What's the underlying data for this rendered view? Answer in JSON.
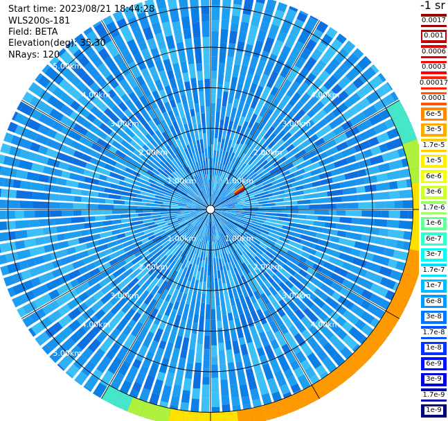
{
  "header": {
    "start_time": "Start time: 2023/08/21 18:44:28",
    "instrument": "WLS200s-181",
    "field": "Field: BETA",
    "elevation": "Elevation(deg): 35.30",
    "nrays": "NRays: 120"
  },
  "colorbar": {
    "title": "-1 sr",
    "labels": [
      "0.0017",
      "0.001",
      "0.0006",
      "0.0003",
      "0.00017",
      "0.0001",
      "6e-5",
      "3e-5",
      "1.7e-5",
      "1e-5",
      "6e-6",
      "3e-6",
      "1.7e-6",
      "1e-6",
      "6e-7",
      "3e-7",
      "1.7e-7",
      "1e-7",
      "6e-8",
      "3e-8",
      "1.7e-8",
      "1e-8",
      "6e-9",
      "3e-9",
      "1.7e-9",
      "1e-9"
    ],
    "colors": [
      "#990000",
      "#bb0000",
      "#dd0000",
      "#ff0000",
      "#ff2200",
      "#ff5500",
      "#ff8800",
      "#ffaa00",
      "#ffcc00",
      "#ffee00",
      "#eeff11",
      "#ccff33",
      "#99ff66",
      "#66ff99",
      "#33ffcc",
      "#00ffee",
      "#00ddff",
      "#00bbff",
      "#0099ff",
      "#0077ff",
      "#0055ff",
      "#0033ff",
      "#0011ff",
      "#0000dd",
      "#0000aa",
      "#000077"
    ]
  },
  "chart_data": {
    "type": "heatmap",
    "projection": "polar (PPI scan)",
    "field": "BETA",
    "elevation_deg": 35.3,
    "n_rays": 120,
    "range_rings_km": [
      1,
      2,
      3,
      4,
      5
    ],
    "range_ring_labels": [
      "1.00km",
      "2.00km",
      "3.00km",
      "4.00km",
      "5.00km"
    ],
    "value_scale": "log",
    "value_range": [
      1e-09,
      0.0017
    ],
    "dominant_value_approx": 3e-08,
    "features": [
      {
        "azimuth_deg": 60,
        "range_km": [
          0.7,
          1.0
        ],
        "value_approx": 0.0003
      },
      {
        "azimuth_deg_span": [
          60,
          210
        ],
        "range_km": [
          5.0,
          5.4
        ],
        "value_approx": 1e-06
      }
    ],
    "grid": true
  }
}
